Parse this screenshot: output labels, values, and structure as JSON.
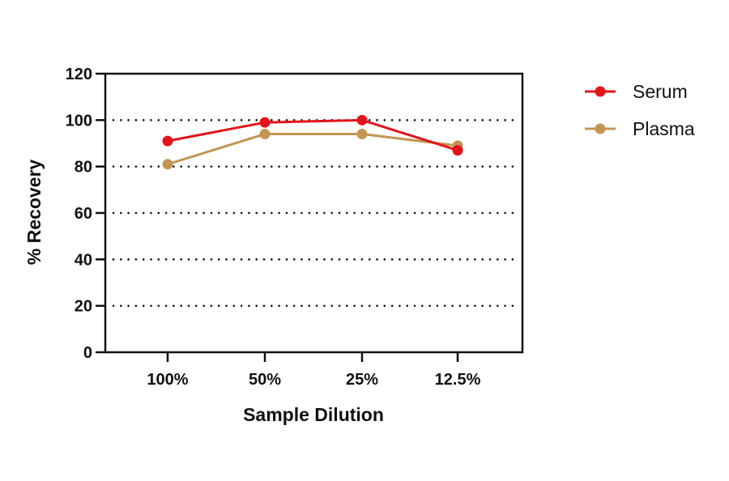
{
  "chart_data": {
    "type": "line",
    "title": "",
    "xlabel": "Sample Dilution",
    "ylabel": "% Recovery",
    "categories": [
      "100%",
      "50%",
      "25%",
      "12.5%"
    ],
    "series": [
      {
        "name": "Serum",
        "color": "#e3131b",
        "values": [
          91,
          99,
          100,
          87
        ]
      },
      {
        "name": "Plasma",
        "color": "#c39553",
        "values": [
          81,
          94,
          94,
          89
        ]
      }
    ],
    "ylim": [
      0,
      120
    ],
    "yticks": [
      0,
      20,
      40,
      60,
      80,
      100,
      120
    ],
    "grid": "horizontal dotted",
    "legend_position": "right"
  }
}
